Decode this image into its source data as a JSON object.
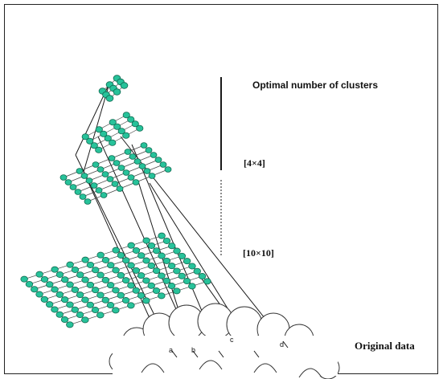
{
  "labels": {
    "optimal": "Optimal number of clusters",
    "grid_small": "[4×4]",
    "grid_large": "[10×10]",
    "original": "Original data"
  },
  "points": [
    "a",
    "b",
    "c",
    "d"
  ],
  "colors": {
    "node_fill": "#27c29a",
    "node_stroke": "#116b52",
    "line": "#1a1a1a"
  }
}
